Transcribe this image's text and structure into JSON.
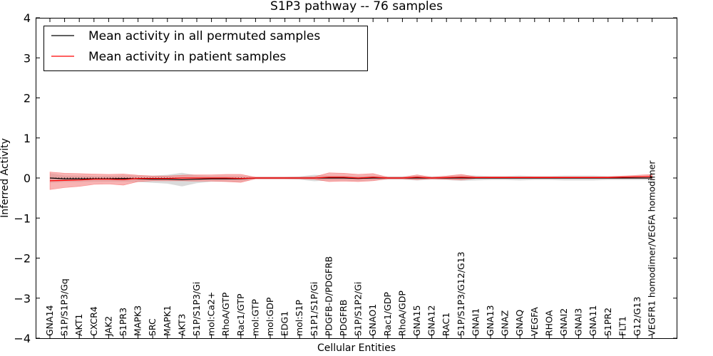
{
  "chart_data": {
    "type": "line",
    "title": "S1P3 pathway -- 76 samples",
    "xlabel": "Cellular Entities",
    "ylabel": "Inferred Activity",
    "ylim": [
      -4,
      4
    ],
    "yticks": [
      -4,
      -3,
      -2,
      -1,
      0,
      1,
      2,
      3,
      4
    ],
    "ytick_labels": [
      "−4",
      "−3",
      "−2",
      "−1",
      "0",
      "1",
      "2",
      "3",
      "4"
    ],
    "legend_position": "top-left",
    "categories": [
      "GNA14",
      "S1P/S1P3/Gq",
      "AKT1",
      "CXCR4",
      "JAK2",
      "S1PR3",
      "MAPK3",
      "SRC",
      "MAPK1",
      "AKT3",
      "S1P/S1P3/Gi",
      "mol:Ca2+",
      "RhoA/GTP",
      "Rac1/GTP",
      "mol:GTP",
      "mol:GDP",
      "EDG1",
      "mol:S1P",
      "S1P1/S1P/Gi",
      "PDGFB-D/PDGFRB",
      "PDGFRB",
      "S1P/S1P2/Gi",
      "GNAO1",
      "Rac1/GDP",
      "RhoA/GDP",
      "GNA15",
      "GNA12",
      "RAC1",
      "S1P/S1P3/G12/G13",
      "GNAI1",
      "GNA13",
      "GNAZ",
      "GNAQ",
      "VEGFA",
      "RHOA",
      "GNAI2",
      "GNAI3",
      "GNA11",
      "S1PR2",
      "FLT1",
      "G12/G13",
      "VEGFR1 homodimer/VEGFA homodimer"
    ],
    "series": [
      {
        "name": "Mean activity in all permuted samples",
        "color": "#000000",
        "band_color": "#bbbbbb",
        "values": [
          0.0,
          -0.02,
          -0.02,
          -0.02,
          -0.02,
          -0.01,
          -0.02,
          -0.03,
          -0.03,
          -0.04,
          -0.03,
          -0.02,
          -0.02,
          -0.02,
          0.0,
          0.0,
          0.0,
          0.0,
          0.0,
          0.0,
          0.0,
          -0.01,
          0.0,
          0.0,
          0.0,
          0.0,
          0.0,
          0.0,
          0.0,
          0.0,
          0.0,
          0.0,
          0.0,
          0.0,
          0.0,
          0.0,
          0.0,
          0.0,
          0.0,
          0.0,
          0.0,
          0.0
        ],
        "band_half_width": [
          0.12,
          0.08,
          0.08,
          0.07,
          0.07,
          0.08,
          0.08,
          0.09,
          0.11,
          0.17,
          0.1,
          0.07,
          0.07,
          0.07,
          0.03,
          0.03,
          0.03,
          0.04,
          0.08,
          0.06,
          0.06,
          0.06,
          0.06,
          0.04,
          0.04,
          0.06,
          0.04,
          0.05,
          0.07,
          0.06,
          0.05,
          0.05,
          0.06,
          0.05,
          0.05,
          0.06,
          0.06,
          0.06,
          0.05,
          0.05,
          0.05,
          0.05
        ]
      },
      {
        "name": "Mean activity in patient samples",
        "color": "#ff0000",
        "band_color": "#f48080",
        "values": [
          -0.07,
          -0.06,
          -0.05,
          -0.03,
          -0.03,
          -0.04,
          -0.01,
          -0.01,
          -0.01,
          0.0,
          0.0,
          0.0,
          0.0,
          -0.01,
          0.0,
          0.0,
          0.0,
          0.0,
          0.0,
          0.02,
          0.02,
          0.0,
          0.02,
          0.0,
          0.0,
          0.02,
          0.0,
          0.01,
          0.02,
          0.01,
          0.01,
          0.01,
          0.01,
          0.01,
          0.01,
          0.01,
          0.01,
          0.01,
          0.01,
          0.02,
          0.03,
          0.04
        ],
        "band_half_width": [
          0.22,
          0.18,
          0.16,
          0.13,
          0.12,
          0.14,
          0.08,
          0.06,
          0.06,
          0.07,
          0.08,
          0.08,
          0.09,
          0.1,
          0.02,
          0.02,
          0.02,
          0.02,
          0.03,
          0.11,
          0.1,
          0.09,
          0.09,
          0.02,
          0.02,
          0.06,
          0.02,
          0.04,
          0.07,
          0.02,
          0.02,
          0.02,
          0.02,
          0.02,
          0.02,
          0.02,
          0.02,
          0.02,
          0.02,
          0.03,
          0.04,
          0.05
        ]
      }
    ]
  }
}
